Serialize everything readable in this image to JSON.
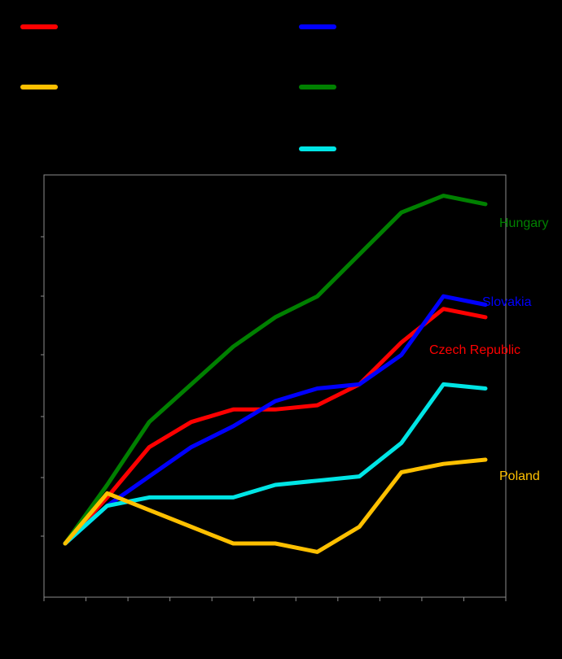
{
  "chart_data": {
    "type": "line",
    "title": "",
    "xlabel": "",
    "ylabel": "",
    "x_points": 11,
    "ylim": [
      0,
      100
    ],
    "grid": false,
    "legend": {
      "placement": "top",
      "columns": 2,
      "labels_visible": false
    },
    "series": [
      {
        "key": "czech",
        "name": "Czech Republic",
        "color": "#ff0000",
        "values": [
          13,
          24,
          36,
          42,
          45,
          45,
          46,
          51,
          61,
          69,
          67
        ]
      },
      {
        "key": "slovakia",
        "name": "Slovakia",
        "color": "#0000ff",
        "values": [
          13,
          22,
          29,
          36,
          41,
          47,
          50,
          51,
          58,
          72,
          70
        ]
      },
      {
        "key": "poland",
        "name": "Poland",
        "color": "#ffc000",
        "values": [
          13,
          25,
          21,
          17,
          13,
          13,
          11,
          17,
          30,
          32,
          33
        ]
      },
      {
        "key": "hungary",
        "name": "Hungary",
        "color": "#008000",
        "values": [
          13,
          27,
          42,
          51,
          60,
          67,
          72,
          82,
          92,
          96,
          94
        ]
      },
      {
        "key": "cyan",
        "name": "",
        "color": "#00e5e5",
        "values": [
          13,
          22,
          24,
          24,
          24,
          27,
          28,
          29,
          37,
          51,
          50
        ]
      }
    ]
  }
}
